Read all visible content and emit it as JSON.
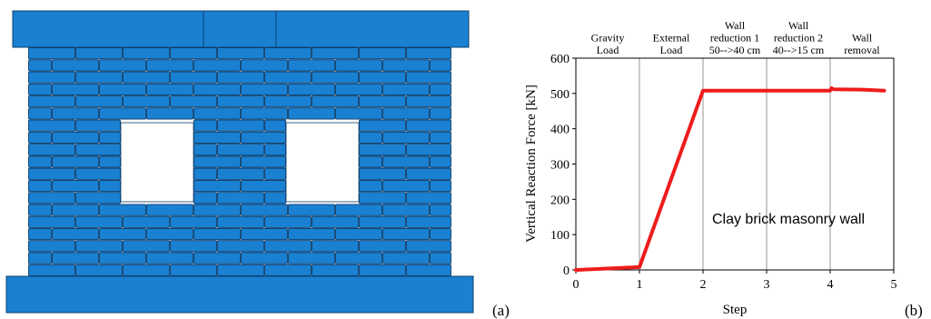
{
  "panels": {
    "a_label": "(a)",
    "b_label": "(b)"
  },
  "colors": {
    "brick": "#1a80d1",
    "brick_outline": "#0d3f6e",
    "series_line": "#ee1c1c",
    "stage_line": "#a8a8a8"
  },
  "chart_data": {
    "type": "line",
    "xlabel": "Step",
    "ylabel": "Vertical Reaction Force [kN]",
    "xlim": [
      0,
      5
    ],
    "ylim": [
      0,
      600
    ],
    "xticks": [
      0,
      1,
      2,
      3,
      4,
      5
    ],
    "yticks": [
      0,
      100,
      200,
      300,
      400,
      500,
      600
    ],
    "grid": false,
    "stage_boundaries": [
      1,
      2,
      3,
      4
    ],
    "stages": [
      {
        "lines": [
          "Gravity",
          "Load"
        ]
      },
      {
        "lines": [
          "External",
          "Load"
        ]
      },
      {
        "lines": [
          "Wall",
          "reduction 1",
          "50-->40 cm"
        ]
      },
      {
        "lines": [
          "Wall",
          "reduction 2",
          "40-->15 cm"
        ]
      },
      {
        "lines": [
          "Wall",
          "removal"
        ]
      }
    ],
    "annotation": "Clay brick masonry wall",
    "series": [
      {
        "x": [
          0,
          1,
          2,
          3,
          4.0,
          4.02,
          4.05,
          4.5,
          4.85
        ],
        "y": [
          0,
          8,
          508,
          508,
          508,
          515,
          512,
          511,
          508
        ]
      }
    ]
  }
}
